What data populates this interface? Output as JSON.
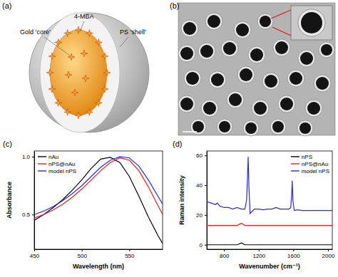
{
  "panel_a": {
    "label": "(a)",
    "core_label": "Gold ‘core’",
    "ligand_label": "4-MBA",
    "shell_label": "PS ‘shell’"
  },
  "panel_b": {
    "label": "(b)"
  },
  "chart_data": [
    {
      "type": "line",
      "title": "(c)",
      "x_label": "Wavelength (nm)",
      "y_label": "Absorbance",
      "x": [
        450,
        460,
        470,
        480,
        490,
        500,
        510,
        520,
        530,
        540,
        550,
        560,
        570,
        580,
        585
      ],
      "xlim": [
        450,
        585
      ],
      "xticks": [
        450,
        500,
        550
      ],
      "ylim": [
        0.2,
        1.05
      ],
      "yticks": [
        {
          "value": 0.5,
          "label": "0.5"
        },
        {
          "value": 1,
          "label": "1.0"
        }
      ],
      "legend": "upper left",
      "series": [
        {
          "name": "nAu",
          "color": "#000000",
          "values": [
            0.45,
            0.5,
            0.56,
            0.63,
            0.71,
            0.8,
            0.9,
            0.98,
            0.995,
            0.95,
            0.83,
            0.66,
            0.48,
            0.32,
            0.25
          ]
        },
        {
          "name": "nPS@nAu",
          "color": "#e8201c",
          "values": [
            0.47,
            0.5,
            0.54,
            0.59,
            0.65,
            0.72,
            0.8,
            0.88,
            0.95,
            0.99,
            0.97,
            0.88,
            0.74,
            0.58,
            0.5
          ]
        },
        {
          "name": "model nPS",
          "color": "#2b2bd8",
          "values": [
            0.5,
            0.53,
            0.57,
            0.62,
            0.68,
            0.75,
            0.83,
            0.91,
            0.97,
            1,
            0.99,
            0.92,
            0.8,
            0.66,
            0.59
          ]
        }
      ]
    },
    {
      "type": "line",
      "title": "(d)",
      "x_label": "Wavenumber (cm⁻¹)",
      "y_label": "Raman intensity",
      "x": [
        600,
        650,
        700,
        720,
        750,
        800,
        850,
        900,
        950,
        1000,
        1040,
        1060,
        1070,
        1078,
        1086,
        1100,
        1150,
        1200,
        1250,
        1300,
        1350,
        1400,
        1450,
        1500,
        1550,
        1570,
        1580,
        1587,
        1595,
        1610,
        1650,
        1700,
        1750,
        1800,
        1850,
        1900,
        1950,
        2000,
        2050
      ],
      "xlim": [
        600,
        2050
      ],
      "xticks": [
        800,
        1200,
        1600,
        2000
      ],
      "ylim": [
        -3,
        63
      ],
      "yticks": [
        0,
        20,
        40,
        60
      ],
      "legend": "upper right",
      "series": [
        {
          "name": "nPS",
          "color": "#000000",
          "values": [
            0,
            0,
            0,
            0,
            0,
            0,
            0,
            0,
            0,
            1.2,
            0,
            0,
            0,
            0,
            0,
            0,
            0,
            0,
            0,
            0,
            0,
            0,
            0,
            0,
            0,
            0,
            0,
            0,
            0,
            0,
            0,
            0,
            0,
            0,
            0,
            0,
            0,
            0,
            0
          ]
        },
        {
          "name": "nPS@nAu",
          "color": "#e8201c",
          "values": [
            13,
            13,
            13,
            13,
            13,
            13,
            13,
            13,
            13,
            14.5,
            13,
            13,
            13,
            13,
            13,
            13,
            13,
            13,
            13,
            13,
            13,
            13,
            13,
            13,
            13,
            13,
            13,
            13,
            13,
            13,
            13,
            13,
            13,
            13,
            13,
            13,
            13,
            13,
            13
          ]
        },
        {
          "name": "model nPS",
          "color": "#2b2bd8",
          "values": [
            29,
            28,
            27,
            28,
            26,
            25,
            25,
            24,
            25,
            24,
            24,
            30,
            45,
            59,
            40,
            21,
            24,
            24,
            23.5,
            24,
            24,
            25,
            24,
            24,
            24,
            25,
            33,
            43,
            30,
            23,
            23.5,
            23,
            23,
            23,
            23,
            23,
            23,
            23,
            23
          ]
        }
      ]
    }
  ]
}
